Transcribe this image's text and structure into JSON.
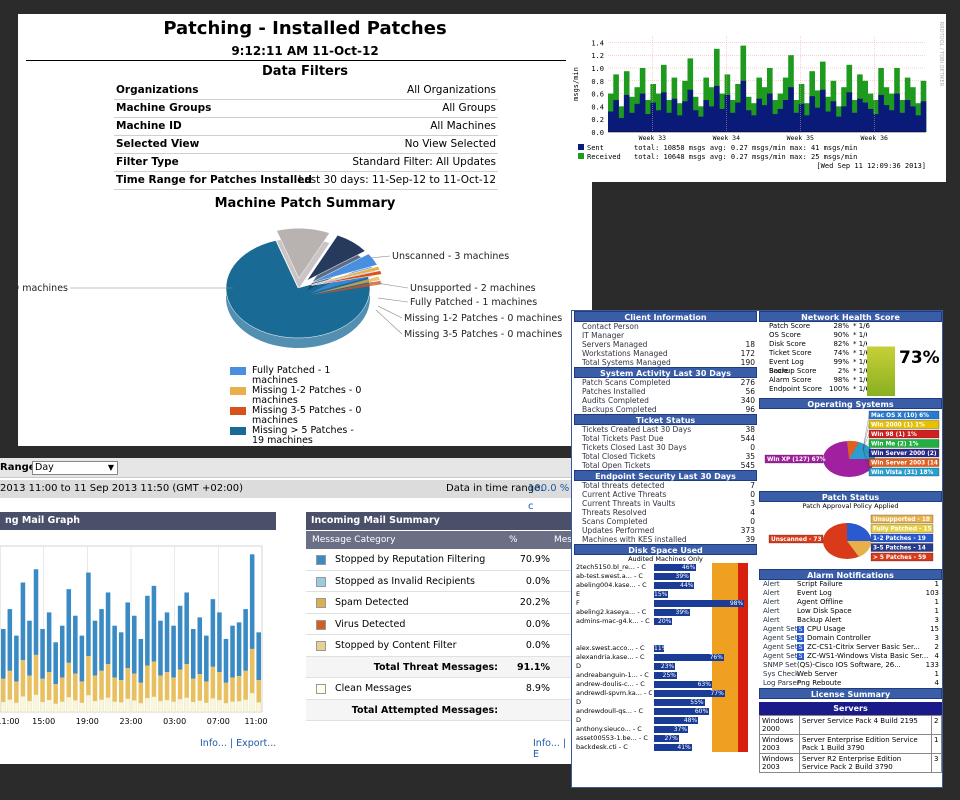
{
  "patching": {
    "title": "Patching - Installed Patches",
    "time": "9:12:11 AM 11-Oct-12",
    "filters_title": "Data Filters",
    "filters": [
      {
        "k": "Organizations",
        "v": "All Organizations"
      },
      {
        "k": "Machine Groups",
        "v": "All Groups"
      },
      {
        "k": "Machine ID",
        "v": "All Machines"
      },
      {
        "k": "Selected View",
        "v": "No View Selected"
      },
      {
        "k": "Filter Type",
        "v": "Standard Filter: All Updates"
      },
      {
        "k": "Time Range for Patches Installed",
        "v": "Last 30 days: 11-Sep-12 to 11-Oct-12"
      }
    ],
    "chart_title": "Machine Patch Summary"
  },
  "chart_data": [
    {
      "type": "pie",
      "title": "Machine Patch Summary",
      "categories": [
        "Fully Patched",
        "Missing 1-2 Patches",
        "Missing 3-5 Patches",
        "Missing > 5 Patches",
        "Unscanned",
        "Unsupported"
      ],
      "values": [
        1,
        0,
        0,
        19,
        3,
        2
      ],
      "slice_labels": [
        "Fully Patched - 1 machines",
        "Missing 1-2 Patches - 0 machines",
        "Missing 3-5 Patches - 0 machines",
        "Missing > 5 Patches - 19 machines",
        "Unscanned - 3 machines",
        "Unsupported - 2 machines"
      ],
      "legend": [
        "Fully Patched - 1 machines",
        "Missing 1-2 Patches - 0 machines",
        "Missing 3-5 Patches - 0 machines",
        "Missing > 5 Patches - 19 machines",
        "Unscanned - 3 machines",
        "Unsupported - 2 machines"
      ],
      "colors": [
        "#4a8ee0",
        "#e8b04a",
        "#d8501a",
        "#1a6a96",
        "#b8b2b0",
        "#263a5e"
      ],
      "legend_position": "bottom"
    },
    {
      "type": "bar",
      "ylabel": "msgs/min",
      "yticks": [
        "0.0",
        "0.2",
        "0.4",
        "0.6",
        "0.8",
        "1.0",
        "1.2",
        "1.4"
      ],
      "ylim": [
        0,
        1.5
      ],
      "xticks": [
        "Week 33",
        "Week 34",
        "Week 35",
        "Week 36"
      ],
      "series": [
        {
          "name": "Sent",
          "color": "#0a1a78",
          "values": [
            0.32,
            0.5,
            0.22,
            0.58,
            0.3,
            0.44,
            0.6,
            0.28,
            0.46,
            0.34,
            0.62,
            0.3,
            0.52,
            0.26,
            0.48,
            0.66,
            0.34,
            0.24,
            0.5,
            0.4,
            0.72,
            0.36,
            0.58,
            0.3,
            0.46,
            0.8,
            0.34,
            0.26,
            0.52,
            0.42,
            0.6,
            0.28,
            0.36,
            0.5,
            0.7,
            0.3,
            0.44,
            0.26,
            0.56,
            0.38,
            0.66,
            0.32,
            0.48,
            0.24,
            0.4,
            0.62,
            0.3,
            0.52,
            0.46,
            0.36,
            0.28,
            0.58,
            0.42,
            0.34,
            0.6,
            0.3,
            0.5,
            0.4,
            0.26,
            0.48
          ]
        },
        {
          "name": "Received",
          "color": "#1e9a1e",
          "values": [
            0.6,
            0.9,
            0.4,
            0.95,
            0.55,
            0.7,
            1.0,
            0.5,
            0.75,
            0.6,
            1.05,
            0.5,
            0.85,
            0.45,
            0.8,
            1.15,
            0.55,
            0.4,
            0.85,
            0.7,
            1.3,
            0.6,
            0.9,
            0.5,
            0.75,
            1.35,
            0.55,
            0.45,
            0.85,
            0.7,
            1.0,
            0.5,
            0.6,
            0.85,
            1.2,
            0.5,
            0.75,
            0.45,
            0.95,
            0.65,
            1.1,
            0.55,
            0.8,
            0.4,
            0.7,
            1.05,
            0.5,
            0.9,
            0.8,
            0.6,
            0.5,
            1.0,
            0.7,
            0.6,
            1.0,
            0.5,
            0.85,
            0.7,
            0.45,
            0.8
          ]
        }
      ],
      "footer": [
        {
          "label": "Sent",
          "stats": "total:   10858 msgs  avg:  0.27 msgs/min  max:   41 msgs/min"
        },
        {
          "label": "Received",
          "stats": "total:   10648 msgs  avg:  0.27 msgs/min  max:   25 msgs/min"
        }
      ],
      "timestamp": "[Wed Sep 11 12:09:36 2013]"
    },
    {
      "type": "bar",
      "title": "Incoming Mail Graph",
      "xticks": [
        "11:00",
        "15:00",
        "19:00",
        "23:00",
        "03:00",
        "07:00",
        "11:00"
      ],
      "stacked_series_colors": [
        "#3a8ac4",
        "#e8c060",
        "#faf6da"
      ],
      "bar_heights": [
        0.5,
        0.62,
        0.46,
        0.78,
        0.55,
        0.86,
        0.5,
        0.6,
        0.42,
        0.52,
        0.74,
        0.58,
        0.46,
        0.84,
        0.55,
        0.62,
        0.72,
        0.52,
        0.48,
        0.66,
        0.58,
        0.44,
        0.7,
        0.76,
        0.55,
        0.6,
        0.52,
        0.64,
        0.72,
        0.5,
        0.57,
        0.46,
        0.68,
        0.6,
        0.44,
        0.52,
        0.54,
        0.62,
        0.95,
        0.48
      ]
    },
    {
      "type": "bar",
      "title": "Disk Space Used",
      "subtitle": "Audited Machines Only",
      "categories": [
        "2tech5150.bl_re... - C",
        "ab-test.swest.a... - C",
        "abeling004.kase... - C",
        "E",
        "F",
        "abeling2.kaseya... - C",
        "admins-mac-g4.k... - C",
        "",
        "",
        "alex.swest.acco... - C",
        "alexandria.kase... - C",
        "D",
        "andreabanguin-1... - C",
        "andrew-doulis-c... - C",
        "andrewdl-spvm.ka... - C",
        "D",
        "andrewdoull-qs... - C",
        "D",
        "anthony.sieuco... - C",
        "asset00553-1.be... - C",
        "backdesk.cti - C"
      ],
      "values": [
        46,
        39,
        44,
        15,
        98,
        39,
        20,
        null,
        null,
        11,
        76,
        23,
        25,
        63,
        77,
        55,
        60,
        48,
        37,
        27,
        41
      ]
    },
    {
      "type": "pie",
      "title": "Operating Systems",
      "categories": [
        "Mac OS X (10) 6%",
        "Win 2000 (1) 1%",
        "Win 98 (1) 1%",
        "Win Me (2) 1%",
        "Win Server 2000 (2)",
        "Win Server 2003 (14",
        "Win Vista (31) 18%",
        "Win XP (127) 67%"
      ],
      "colors": [
        "#2a7ad0",
        "#e8c000",
        "#d02020",
        "#20b040",
        "#2a2a8a",
        "#e06020",
        "#2aa0d0",
        "#a020a0"
      ]
    },
    {
      "type": "pie",
      "title": "Patch Status",
      "subtitle": "Patch Approval Policy Applied",
      "categories": [
        "Unsupported - 18",
        "Fully Patched - 15",
        "1-2 Patches - 19",
        "3-5 Patches - 14",
        "> 5 Patches - 59",
        "Unscanned - 73"
      ],
      "colors": [
        "#e8b04a",
        "#e8d040",
        "#2a5ad0",
        "#2a3a8a",
        "#d83a1a",
        "#d83a1a"
      ]
    }
  ],
  "graph": {
    "axis_label": "msgs/min",
    "side_label": "RRDTOOL / TOBI OETIKER",
    "sent_label": "Sent",
    "sent_stats": "total:   10858 msgs  avg:  0.27 msgs/min  max:   41 msgs/min",
    "received_label": "Received",
    "received_stats": "total:   10648 msgs  avg:  0.27 msgs/min  max:   25 msgs/min",
    "timestamp": "[Wed Sep 11 12:09:36 2013]"
  },
  "mail": {
    "range_label": "Range:",
    "range_value": "Day",
    "time_range": "2013 11:00 to 11 Sep 2013 11:50 (GMT +02:00)",
    "data_in_range": "Data in time range:",
    "data_in_range_value": "100.0 % c",
    "graph_title": "ng Mail Graph",
    "summary_title": "Incoming Mail Summary",
    "col_category": "Message Category",
    "col_pct": "%",
    "col_msg": "Mess",
    "rows": [
      {
        "name": "Stopped by Reputation Filtering",
        "pct": "70.9%",
        "color": "#3a8ac4"
      },
      {
        "name": "Stopped as Invalid Recipients",
        "pct": "0.0%",
        "color": "#9ccbe0"
      },
      {
        "name": "Spam Detected",
        "pct": "20.2%",
        "color": "#d8b050"
      },
      {
        "name": "Virus Detected",
        "pct": "0.0%",
        "color": "#d06020"
      },
      {
        "name": "Stopped by Content Filter",
        "pct": "0.0%",
        "color": "#e8d090"
      }
    ],
    "total_threat_label": "Total Threat Messages:",
    "total_threat_pct": "91.1%",
    "clean_label": "Clean Messages",
    "clean_pct": "8.9%",
    "clean_color": "#fffde8",
    "total_attempted_label": "Total Attempted Messages:",
    "links_left": "Info... | Export...",
    "links_right": "Info... | E"
  },
  "dash": {
    "client_title": "Client Information",
    "client_rows": [
      {
        "k": "Contact Person",
        "v": ""
      },
      {
        "k": "IT Manager",
        "v": ""
      },
      {
        "k": "Servers Managed",
        "v": "18"
      },
      {
        "k": "Workstations Managed",
        "v": "172"
      },
      {
        "k": "Total Systems Managed",
        "v": "190"
      }
    ],
    "activity_title": "System Activity Last 30 Days",
    "activity_rows": [
      {
        "k": "Patch Scans Completed",
        "v": "276"
      },
      {
        "k": "Patches Installed",
        "v": "56"
      },
      {
        "k": "Audits Completed",
        "v": "340"
      },
      {
        "k": "Backups Completed",
        "v": "96"
      }
    ],
    "ticket_title": "Ticket Status",
    "ticket_rows": [
      {
        "k": "Tickets Created Last 30 Days",
        "v": "38"
      },
      {
        "k": "Total Tickets Past Due",
        "v": "544"
      },
      {
        "k": "Tickets Closed Last 30 Days",
        "v": "0"
      },
      {
        "k": "Total Closed Tickets",
        "v": "35"
      },
      {
        "k": "Total Open Tickets",
        "v": "545"
      }
    ],
    "endpoint_title": "Endpoint Security Last 30 Days",
    "endpoint_rows": [
      {
        "k": "Total threats detected",
        "v": "7"
      },
      {
        "k": "Current Active Threats",
        "v": "0"
      },
      {
        "k": "Current Threats in Vaults",
        "v": "3"
      },
      {
        "k": "Threats Resolved",
        "v": "4"
      },
      {
        "k": "Scans Completed",
        "v": "0"
      },
      {
        "k": "Updates Performed",
        "v": "373"
      },
      {
        "k": "Machines with KES installed",
        "v": "39"
      }
    ],
    "disk_title": "Disk Space Used",
    "disk_sub": "Audited Machines Only",
    "health_title": "Network Health Score",
    "health_rows": [
      {
        "k": "Patch Score",
        "p": "28%",
        "w": "* 1/6"
      },
      {
        "k": "OS Score",
        "p": "90%",
        "w": "* 1/6"
      },
      {
        "k": "Disk Score",
        "p": "82%",
        "w": "* 1/6"
      },
      {
        "k": "Ticket Score",
        "p": "74%",
        "w": "* 1/6"
      },
      {
        "k": "Event Log Score",
        "p": "99%",
        "w": "* 1/6"
      },
      {
        "k": "Backup Score",
        "p": "2%",
        "w": "* 1/6"
      },
      {
        "k": "Alarm Score",
        "p": "98%",
        "w": "* 1/6"
      },
      {
        "k": "Endpoint Score",
        "p": "100%",
        "w": "* 1/6"
      }
    ],
    "health_value": "73%",
    "health_fraction": 0.73,
    "os_title": "Operating Systems",
    "patch_title": "Patch Status",
    "patch_sub": "Patch Approval Policy Applied",
    "alarm_title": "Alarm Notifications",
    "alarms": [
      {
        "t": "Alert",
        "d": "Script Failure",
        "v": "1",
        "s": false
      },
      {
        "t": "Alert",
        "d": "Event Log",
        "v": "103",
        "s": false
      },
      {
        "t": "Alert",
        "d": "Agent Offline",
        "v": "1",
        "s": false
      },
      {
        "t": "Alert",
        "d": "Low Disk Space",
        "v": "1",
        "s": false
      },
      {
        "t": "Alert",
        "d": "Backup Alert",
        "v": "3",
        "s": false
      },
      {
        "t": "Agent Set",
        "d": "CPU Usage",
        "v": "15",
        "s": true
      },
      {
        "t": "Agent Set",
        "d": "Domain Controller",
        "v": "3",
        "s": true
      },
      {
        "t": "Agent Set",
        "d": "ZC-CS1-Citrix Server Basic Ser...",
        "v": "2",
        "s": true
      },
      {
        "t": "Agent Set",
        "d": "ZC-WS1-Windows Vista Basic Ser...",
        "v": "4",
        "s": true
      },
      {
        "t": "SNMP Set",
        "d": "(QS)-Cisco IOS Software, 26...",
        "v": "133",
        "s": false
      },
      {
        "t": "Sys Check",
        "d": "Web Server",
        "v": "1",
        "s": false
      },
      {
        "t": "Log Parser",
        "d": "Png Reboute",
        "v": "4",
        "s": false
      }
    ],
    "license_title": "License Summary",
    "servers_label": "Servers",
    "licenses": [
      {
        "os": "Windows 2000",
        "name": "Server Service Pack 4 Build 2195",
        "n": "2"
      },
      {
        "os": "Windows 2003",
        "name": "Server Enterprise Edition Service Pack 1 Build 3790",
        "n": "1"
      },
      {
        "os": "Windows 2003",
        "name": "Server R2 Enterprise Edition Service Pack 2 Build 3790",
        "n": "3"
      }
    ]
  }
}
